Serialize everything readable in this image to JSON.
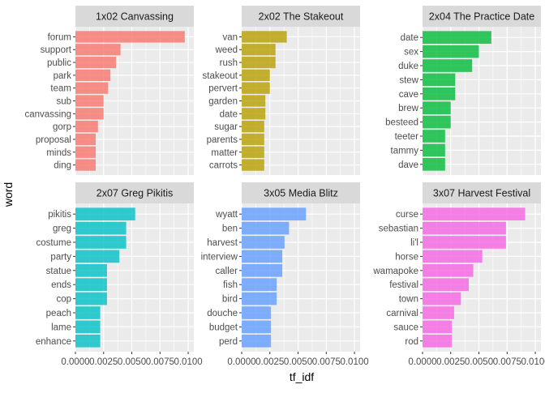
{
  "chart_data": {
    "type": "bar",
    "orientation": "horizontal",
    "xlabel": "tf_idf",
    "ylabel": "word",
    "xlim": [
      0,
      0.0105
    ],
    "x_ticks": [
      0.0,
      0.0025,
      0.005,
      0.0075,
      0.01
    ],
    "x_tick_labels": [
      "0.0000",
      "0.0025",
      "0.0050",
      "0.0075",
      "0.0100"
    ],
    "grid": true,
    "legend": "none",
    "facets": [
      {
        "title": "1x02 Canvassing",
        "color": "#F8766D",
        "categories": [
          "forum",
          "support",
          "public",
          "park",
          "team",
          "sub",
          "canvassing",
          "gorp",
          "proposal",
          "minds",
          "ding"
        ],
        "values": [
          0.0097,
          0.004,
          0.0036,
          0.0031,
          0.0029,
          0.0025,
          0.0025,
          0.002,
          0.0018,
          0.0018,
          0.0018
        ]
      },
      {
        "title": "2x02 The Stakeout",
        "color": "#B79F00",
        "categories": [
          "van",
          "weed",
          "rush",
          "stakeout",
          "pervert",
          "garden",
          "date",
          "sugar",
          "parents",
          "matter",
          "carrots"
        ],
        "values": [
          0.004,
          0.003,
          0.003,
          0.0025,
          0.0025,
          0.0021,
          0.0021,
          0.002,
          0.002,
          0.002,
          0.002
        ]
      },
      {
        "title": "2x04 The Practice Date",
        "color": "#00BA38",
        "categories": [
          "date",
          "sex",
          "duke",
          "stew",
          "cave",
          "brew",
          "besteed",
          "teeter",
          "tammy",
          "dave"
        ],
        "values": [
          0.0061,
          0.005,
          0.0044,
          0.0029,
          0.0029,
          0.0025,
          0.0025,
          0.002,
          0.002,
          0.002
        ]
      },
      {
        "title": "2x07 Greg Pikitis",
        "color": "#00BFC4",
        "categories": [
          "pikitis",
          "greg",
          "costume",
          "party",
          "statue",
          "ends",
          "cop",
          "peach",
          "lame",
          "enhance"
        ],
        "values": [
          0.0053,
          0.0045,
          0.0045,
          0.0039,
          0.0028,
          0.0028,
          0.0028,
          0.0022,
          0.0022,
          0.0022
        ]
      },
      {
        "title": "3x05 Media Blitz",
        "color": "#619CFF",
        "categories": [
          "wyatt",
          "ben",
          "harvest",
          "interview",
          "caller",
          "fish",
          "bird",
          "douche",
          "budget",
          "perd"
        ],
        "values": [
          0.0057,
          0.0042,
          0.0038,
          0.0036,
          0.0036,
          0.0031,
          0.0031,
          0.0026,
          0.0026,
          0.0026
        ]
      },
      {
        "title": "3x07 Harvest Festival",
        "color": "#F564E3",
        "categories": [
          "curse",
          "sebastian",
          "li'l",
          "horse",
          "wamapoke",
          "festival",
          "town",
          "carnival",
          "sauce",
          "rod"
        ],
        "values": [
          0.0091,
          0.0074,
          0.0074,
          0.0053,
          0.0045,
          0.0041,
          0.0034,
          0.0028,
          0.0026,
          0.0026
        ]
      }
    ]
  }
}
